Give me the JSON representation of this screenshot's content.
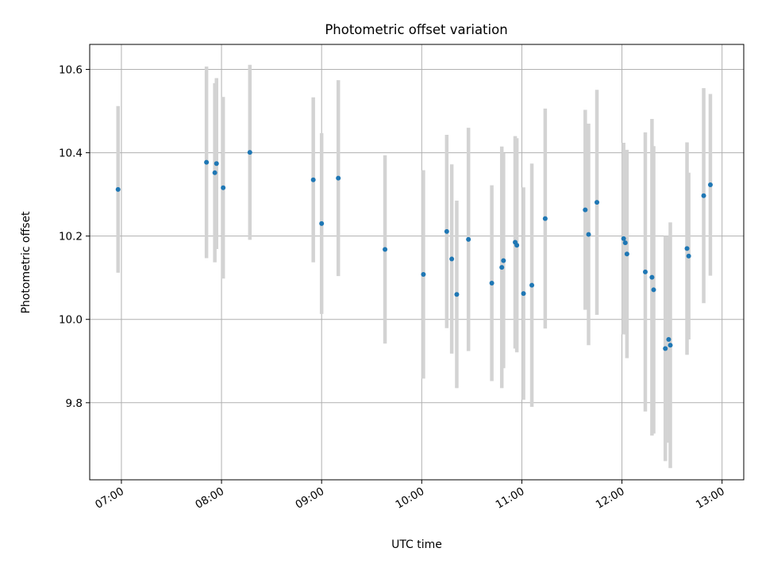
{
  "chart_data": {
    "type": "scatter",
    "title": "Photometric offset variation",
    "xlabel": "UTC time",
    "ylabel": "Photometric offset",
    "x_ticks": [
      "07:00",
      "08:00",
      "09:00",
      "10:00",
      "11:00",
      "12:00",
      "13:00"
    ],
    "y_ticks": [
      "9.8",
      "10.0",
      "10.2",
      "10.4",
      "10.6"
    ],
    "xlim": [
      "06:41",
      "13:13"
    ],
    "ylim": [
      9.615,
      10.66
    ],
    "grid": true,
    "colors": {
      "point": "#1f77b4",
      "errorbar": "#d3d3d3",
      "grid": "#b0b0b0"
    },
    "series": [
      {
        "points": [
          {
            "x": "06:58",
            "y": 10.312,
            "err": 0.2
          },
          {
            "x": "07:51",
            "y": 10.377,
            "err": 0.23
          },
          {
            "x": "07:56",
            "y": 10.352,
            "err": 0.215
          },
          {
            "x": "07:57",
            "y": 10.374,
            "err": 0.205
          },
          {
            "x": "08:01",
            "y": 10.316,
            "err": 0.218
          },
          {
            "x": "08:17",
            "y": 10.401,
            "err": 0.21
          },
          {
            "x": "08:55",
            "y": 10.335,
            "err": 0.198
          },
          {
            "x": "09:00",
            "y": 10.23,
            "err": 0.217
          },
          {
            "x": "09:10",
            "y": 10.339,
            "err": 0.235
          },
          {
            "x": "09:38",
            "y": 10.168,
            "err": 0.226
          },
          {
            "x": "10:01",
            "y": 10.108,
            "err": 0.25
          },
          {
            "x": "10:15",
            "y": 10.211,
            "err": 0.232
          },
          {
            "x": "10:18",
            "y": 10.145,
            "err": 0.227
          },
          {
            "x": "10:21",
            "y": 10.06,
            "err": 0.225
          },
          {
            "x": "10:28",
            "y": 10.192,
            "err": 0.268
          },
          {
            "x": "10:42",
            "y": 10.087,
            "err": 0.235
          },
          {
            "x": "10:48",
            "y": 10.125,
            "err": 0.29
          },
          {
            "x": "10:49",
            "y": 10.141,
            "err": 0.258
          },
          {
            "x": "10:56",
            "y": 10.185,
            "err": 0.255
          },
          {
            "x": "10:57",
            "y": 10.178,
            "err": 0.257
          },
          {
            "x": "11:01",
            "y": 10.062,
            "err": 0.255
          },
          {
            "x": "11:06",
            "y": 10.082,
            "err": 0.292
          },
          {
            "x": "11:14",
            "y": 10.242,
            "err": 0.264
          },
          {
            "x": "11:38",
            "y": 10.263,
            "err": 0.24
          },
          {
            "x": "11:40",
            "y": 10.204,
            "err": 0.266
          },
          {
            "x": "11:45",
            "y": 10.281,
            "err": 0.27
          },
          {
            "x": "12:01",
            "y": 10.194,
            "err": 0.23
          },
          {
            "x": "12:02",
            "y": 10.184,
            "err": 0.22
          },
          {
            "x": "12:03",
            "y": 10.157,
            "err": 0.25
          },
          {
            "x": "12:14",
            "y": 10.114,
            "err": 0.335
          },
          {
            "x": "12:18",
            "y": 10.101,
            "err": 0.38
          },
          {
            "x": "12:19",
            "y": 10.071,
            "err": 0.345
          },
          {
            "x": "12:26",
            "y": 9.93,
            "err": 0.27
          },
          {
            "x": "12:28",
            "y": 9.952,
            "err": 0.248
          },
          {
            "x": "12:29",
            "y": 9.938,
            "err": 0.295
          },
          {
            "x": "12:39",
            "y": 10.17,
            "err": 0.255
          },
          {
            "x": "12:40",
            "y": 10.152,
            "err": 0.2
          },
          {
            "x": "12:49",
            "y": 10.297,
            "err": 0.258
          },
          {
            "x": "12:53",
            "y": 10.323,
            "err": 0.218
          }
        ]
      }
    ]
  }
}
